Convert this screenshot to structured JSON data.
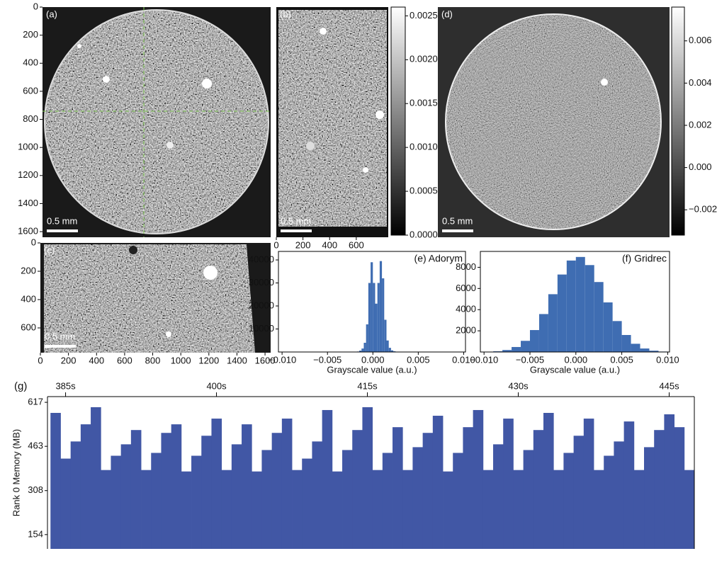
{
  "chart_data": [
    {
      "type": "image",
      "panel_label": "(a)",
      "scale_bar": "0.5 mm",
      "ylim": [
        1640,
        0
      ],
      "yticks": [
        0,
        200,
        400,
        600,
        800,
        1000,
        1200,
        1400,
        1600
      ]
    },
    {
      "type": "image",
      "panel_label": "(b)",
      "scale_bar": "0.5 mm",
      "xlim": [
        0,
        840
      ],
      "xticks": [
        0,
        200,
        400,
        600
      ],
      "colorbar_lim": [
        0,
        0.0026
      ],
      "colorbar_ticks": [
        {
          "value": 0,
          "label": "0.0000"
        },
        0.0005,
        {
          "value": 0.001,
          "label": "0.0010"
        },
        0.0015,
        {
          "value": 0.002,
          "label": "0.0020"
        },
        0.0025
      ]
    },
    {
      "type": "image",
      "panel_label": "(c)",
      "scale_bar": "0.5 mm",
      "xlim": [
        0,
        1640
      ],
      "xticks": [
        0,
        200,
        400,
        600,
        800,
        1000,
        1200,
        1400,
        1600
      ],
      "ylim": [
        775,
        0
      ],
      "yticks": [
        0,
        200,
        400,
        600
      ]
    },
    {
      "type": "image",
      "panel_label": "(d)",
      "scale_bar": "0.5 mm",
      "colorbar_lim": [
        -0.0032,
        0.0076
      ],
      "colorbar_ticks": [
        {
          "value": -0.002,
          "label": "−0.002"
        },
        {
          "value": 0,
          "label": "0.000"
        },
        0.002,
        0.004,
        0.006
      ]
    },
    {
      "type": "histogram",
      "title": "(e) Adorym",
      "xlabel": "Grayscale value (a.u.)",
      "color": "#3f6db2",
      "bins": [
        -0.002,
        -0.00175,
        -0.0015,
        -0.00125,
        -0.001,
        -0.00075,
        -0.0005,
        -0.00025,
        0,
        0.00025,
        0.0005,
        0.00075,
        0.001,
        0.00125,
        0.0015,
        0.00175,
        0.002,
        0.00225,
        0.0025,
        0.00275,
        0.003
      ],
      "values": [
        0,
        200,
        600,
        1500,
        4000,
        12000,
        30000,
        39000,
        30000,
        21000,
        30000,
        39500,
        32000,
        14000,
        5000,
        1800,
        700,
        300,
        100,
        0
      ],
      "xlim": [
        -0.0104,
        0.0102
      ],
      "xticks": [
        {
          "value": -0.01,
          "label": "−0.010"
        },
        {
          "value": -0.005,
          "label": "−0.005"
        },
        {
          "value": 0,
          "label": "0.000"
        },
        0.005,
        {
          "value": 0.01,
          "label": "0.010"
        }
      ],
      "ylim": [
        0,
        43700
      ],
      "yticks": [
        10000,
        20000,
        30000,
        40000
      ]
    },
    {
      "type": "histogram",
      "title": "(f) Gridrec",
      "xlabel": "Grayscale value (a.u.)",
      "color": "#3f6db2",
      "bins": [
        -0.01,
        -0.009,
        -0.008,
        -0.007,
        -0.006,
        -0.005,
        -0.004,
        -0.003,
        -0.002,
        -0.001,
        0,
        0.001,
        0.002,
        0.003,
        0.004,
        0.005,
        0.006,
        0.007,
        0.008,
        0.009,
        0.01
      ],
      "values": [
        20,
        64,
        186,
        471,
        1053,
        2071,
        3584,
        5459,
        7318,
        8640,
        8977,
        8210,
        6609,
        4684,
        2922,
        1606,
        776,
        330,
        123,
        40
      ],
      "xlim": [
        -0.0104,
        0.0102
      ],
      "xticks": [
        {
          "value": -0.01,
          "label": "−0.010"
        },
        {
          "value": -0.005,
          "label": "−0.005"
        },
        {
          "value": 0,
          "label": "0.000"
        },
        0.005,
        {
          "value": 0.01,
          "label": "0.010"
        }
      ],
      "ylim": [
        0,
        9500
      ],
      "yticks": [
        2000,
        4000,
        6000,
        8000
      ]
    },
    {
      "type": "bar",
      "panel_label": "(g)",
      "ylabel": "Rank 0 Memory (MB)",
      "color": "#4157a5",
      "x_axis": "top",
      "x": [
        384,
        385,
        386,
        387,
        388,
        389,
        390,
        391,
        392,
        393,
        394,
        395,
        396,
        397,
        398,
        399,
        400,
        401,
        402,
        403,
        404,
        405,
        406,
        407,
        408,
        409,
        410,
        411,
        412,
        413,
        414,
        415,
        416,
        417,
        418,
        419,
        420,
        421,
        422,
        423,
        424,
        425,
        426,
        427,
        428,
        429,
        430,
        431,
        432,
        433,
        434,
        435,
        436,
        437,
        438,
        439,
        440,
        441,
        442,
        443,
        444,
        445,
        446,
        447
      ],
      "values": [
        580,
        420,
        480,
        540,
        600,
        380,
        430,
        470,
        520,
        380,
        440,
        510,
        540,
        375,
        430,
        500,
        560,
        380,
        470,
        540,
        375,
        450,
        510,
        560,
        380,
        420,
        480,
        590,
        375,
        450,
        520,
        600,
        380,
        440,
        530,
        380,
        460,
        510,
        570,
        375,
        440,
        530,
        590,
        380,
        470,
        560,
        380,
        450,
        520,
        580,
        380,
        440,
        500,
        560,
        380,
        430,
        480,
        550,
        380,
        460,
        520,
        575,
        530,
        380
      ],
      "xlim": [
        383.2,
        447.5
      ],
      "xticks": [
        {
          "value": 385,
          "label": "385s"
        },
        {
          "value": 400,
          "label": "400s"
        },
        {
          "value": 415,
          "label": "415s"
        },
        {
          "value": 430,
          "label": "430s"
        },
        {
          "value": 445,
          "label": "445s"
        }
      ],
      "ylim": [
        104,
        637
      ],
      "yticks": [
        154,
        308,
        463,
        617
      ]
    }
  ]
}
